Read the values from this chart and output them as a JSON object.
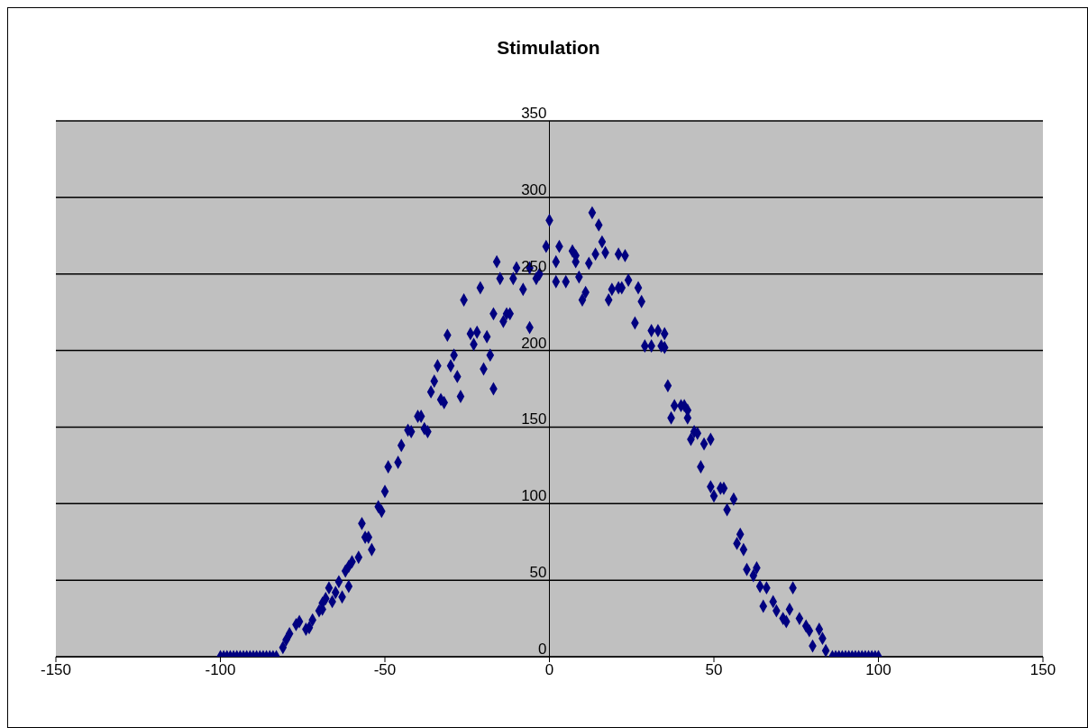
{
  "chart_data": {
    "type": "scatter",
    "title": "Stimulation",
    "x": [
      -100,
      -99,
      -98,
      -97,
      -96,
      -95,
      -94,
      -93,
      -92,
      -91,
      -90,
      -89,
      -88,
      -87,
      -86,
      -85,
      -84,
      -83,
      -81,
      -80,
      -79,
      -77,
      -76,
      -74,
      -73,
      -72,
      -70,
      -69,
      -69,
      -68,
      -67,
      -66,
      -65,
      -64,
      -63,
      -62,
      -61,
      -61,
      -60,
      -58,
      -57,
      -56,
      -55,
      -54,
      -52,
      -51,
      -50,
      -49,
      -46,
      -45,
      -43,
      -42,
      -40,
      -39,
      -38,
      -37,
      -36,
      -35,
      -34,
      -33,
      -32,
      -31,
      -30,
      -29,
      -28,
      -27,
      -26,
      -24,
      -23,
      -22,
      -21,
      -20,
      -19,
      -18,
      -17,
      -17,
      -16,
      -15,
      -14,
      -13,
      -12,
      -11,
      -10,
      -8,
      -6,
      -6,
      -4,
      -3,
      -1,
      0,
      2,
      2,
      3,
      5,
      7,
      8,
      8,
      9,
      10,
      11,
      12,
      13,
      14,
      15,
      16,
      17,
      18,
      19,
      21,
      21,
      22,
      23,
      24,
      26,
      27,
      28,
      29,
      31,
      31,
      33,
      34,
      35,
      35,
      36,
      37,
      38,
      40,
      41,
      42,
      42,
      43,
      44,
      45,
      46,
      47,
      49,
      49,
      50,
      52,
      53,
      54,
      56,
      57,
      58,
      59,
      60,
      62,
      63,
      64,
      65,
      66,
      68,
      69,
      71,
      72,
      73,
      74,
      76,
      78,
      79,
      80,
      82,
      83,
      84,
      86,
      87,
      88,
      89,
      90,
      91,
      92,
      93,
      94,
      95,
      96,
      97,
      98,
      99,
      100
    ],
    "values": [
      0,
      0,
      0,
      0,
      0,
      0,
      0,
      0,
      0,
      0,
      0,
      0,
      0,
      0,
      0,
      0,
      0,
      0,
      6,
      11,
      15,
      21,
      23,
      18,
      19,
      24,
      30,
      35,
      31,
      38,
      45,
      36,
      42,
      49,
      39,
      56,
      59,
      46,
      62,
      65,
      87,
      78,
      78,
      70,
      98,
      95,
      108,
      124,
      127,
      138,
      148,
      147,
      157,
      157,
      149,
      147,
      173,
      180,
      190,
      168,
      166,
      210,
      190,
      197,
      183,
      170,
      233,
      211,
      204,
      212,
      241,
      188,
      209,
      197,
      224,
      175,
      258,
      247,
      219,
      224,
      224,
      247,
      254,
      240,
      254,
      215,
      247,
      250,
      268,
      285,
      245,
      258,
      268,
      245,
      265,
      262,
      258,
      248,
      233,
      238,
      257,
      290,
      263,
      282,
      271,
      264,
      233,
      240,
      241,
      263,
      241,
      262,
      246,
      218,
      241,
      232,
      203,
      213,
      203,
      213,
      203,
      202,
      211,
      177,
      156,
      164,
      164,
      164,
      161,
      156,
      142,
      147,
      146,
      124,
      139,
      142,
      111,
      105,
      110,
      110,
      96,
      103,
      74,
      80,
      70,
      57,
      53,
      58,
      46,
      33,
      45,
      36,
      30,
      25,
      23,
      31,
      45,
      25,
      20,
      17,
      7,
      18,
      12,
      4,
      0,
      0,
      0,
      0,
      0,
      0,
      0,
      0,
      0,
      0,
      0,
      0,
      0,
      0,
      0
    ],
    "color": "#000080",
    "marker": "diamond",
    "xlim": [
      -150,
      150
    ],
    "xticks": [
      -150,
      -100,
      -50,
      0,
      50,
      100,
      150
    ],
    "ylim": [
      0,
      350
    ],
    "yticks": [
      0,
      50,
      100,
      150,
      200,
      250,
      300,
      350
    ],
    "grid": "y"
  }
}
